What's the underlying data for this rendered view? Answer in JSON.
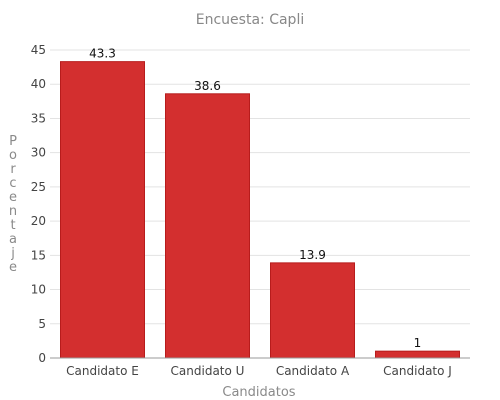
{
  "chart_data": {
    "type": "bar",
    "title": "Encuesta: Capli",
    "xlabel": "Candidatos",
    "ylabel": "Porcentaje",
    "categories": [
      "Candidato E",
      "Candidato U",
      "Candidato A",
      "Candidato J"
    ],
    "values": [
      43.3,
      38.6,
      13.9,
      1
    ],
    "value_labels": [
      "43.3",
      "38.6",
      "13.9",
      "1"
    ],
    "ylim": [
      0,
      45
    ],
    "yticks": [
      0,
      5,
      10,
      15,
      20,
      25,
      30,
      35,
      40,
      45
    ],
    "grid": true,
    "colors": {
      "bar": "#d32f2f",
      "bar_edge": "#b71c1c"
    }
  }
}
